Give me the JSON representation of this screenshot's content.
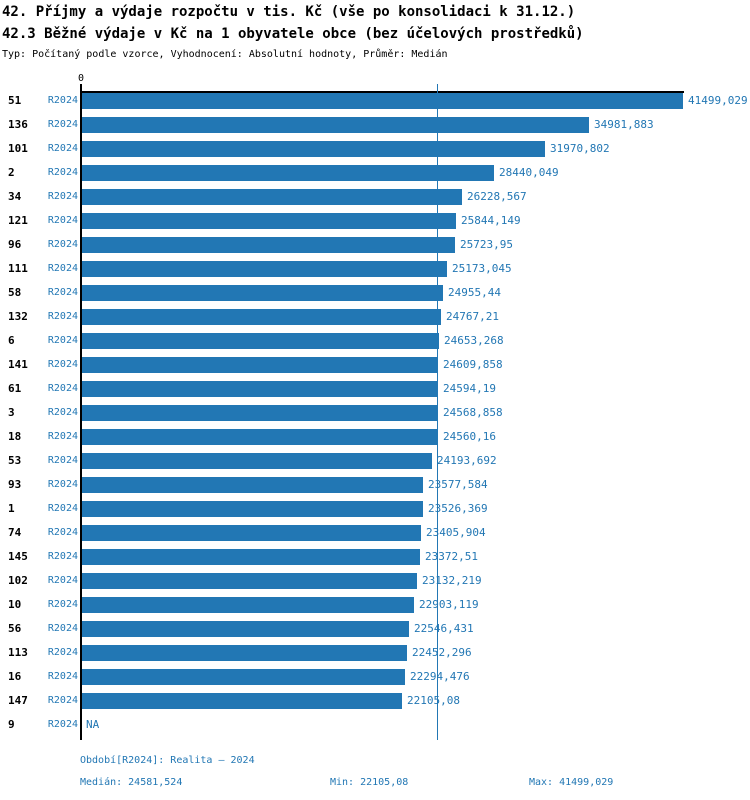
{
  "header": {
    "title_line1": "42. Příjmy a výdaje rozpočtu v tis. Kč (vše po konsolidaci k 31.12.)",
    "title_line2": "42.3 Běžné výdaje v Kč na 1 obyvatele obce (bez účelových prostředků)",
    "subtitle": "Typ: Počítaný podle vzorce, Vyhodnocení: Absolutní hodnoty, Průměr: Medián"
  },
  "axis": {
    "zero_label": "0"
  },
  "chart_data": {
    "type": "bar",
    "orientation": "horizontal",
    "title": "42.3 Běžné výdaje v Kč na 1 obyvatele obce (bez účelových prostředků)",
    "series_label": "R2024",
    "categories": [
      "51",
      "136",
      "101",
      "2",
      "34",
      "121",
      "96",
      "111",
      "58",
      "132",
      "6",
      "141",
      "61",
      "3",
      "18",
      "53",
      "93",
      "1",
      "74",
      "145",
      "102",
      "10",
      "56",
      "113",
      "16",
      "147",
      "9"
    ],
    "values": [
      41499.029,
      34981.883,
      31970.802,
      28440.049,
      26228.567,
      25844.149,
      25723.95,
      25173.045,
      24955.44,
      24767.21,
      24653.268,
      24609.858,
      24594.19,
      24568.858,
      24560.16,
      24193.692,
      23577.584,
      23526.369,
      23405.904,
      23372.51,
      23132.219,
      22903.119,
      22546.431,
      22452.296,
      22294.476,
      22105.08,
      null
    ],
    "value_labels": [
      "41499,029",
      "34981,883",
      "31970,802",
      "28440,049",
      "26228,567",
      "25844,149",
      "25723,95",
      "25173,045",
      "24955,44",
      "24767,21",
      "24653,268",
      "24609,858",
      "24594,19",
      "24568,858",
      "24560,16",
      "24193,692",
      "23577,584",
      "23526,369",
      "23405,904",
      "23372,51",
      "23132,219",
      "22903,119",
      "22546,431",
      "22452,296",
      "22294,476",
      "22105,08",
      "NA"
    ],
    "xlim": [
      0,
      41499.029
    ],
    "median": 24581.524,
    "grid": false,
    "legend_position": "none",
    "colors": {
      "bar": "#2277b4",
      "accent_text": "#2277b4",
      "axis": "#000000"
    }
  },
  "footer": {
    "period": "Období[R2024]: Realita – 2024",
    "median": "Medián: 24581,524",
    "min": "Min: 22105,08",
    "max": "Max: 41499,029"
  }
}
